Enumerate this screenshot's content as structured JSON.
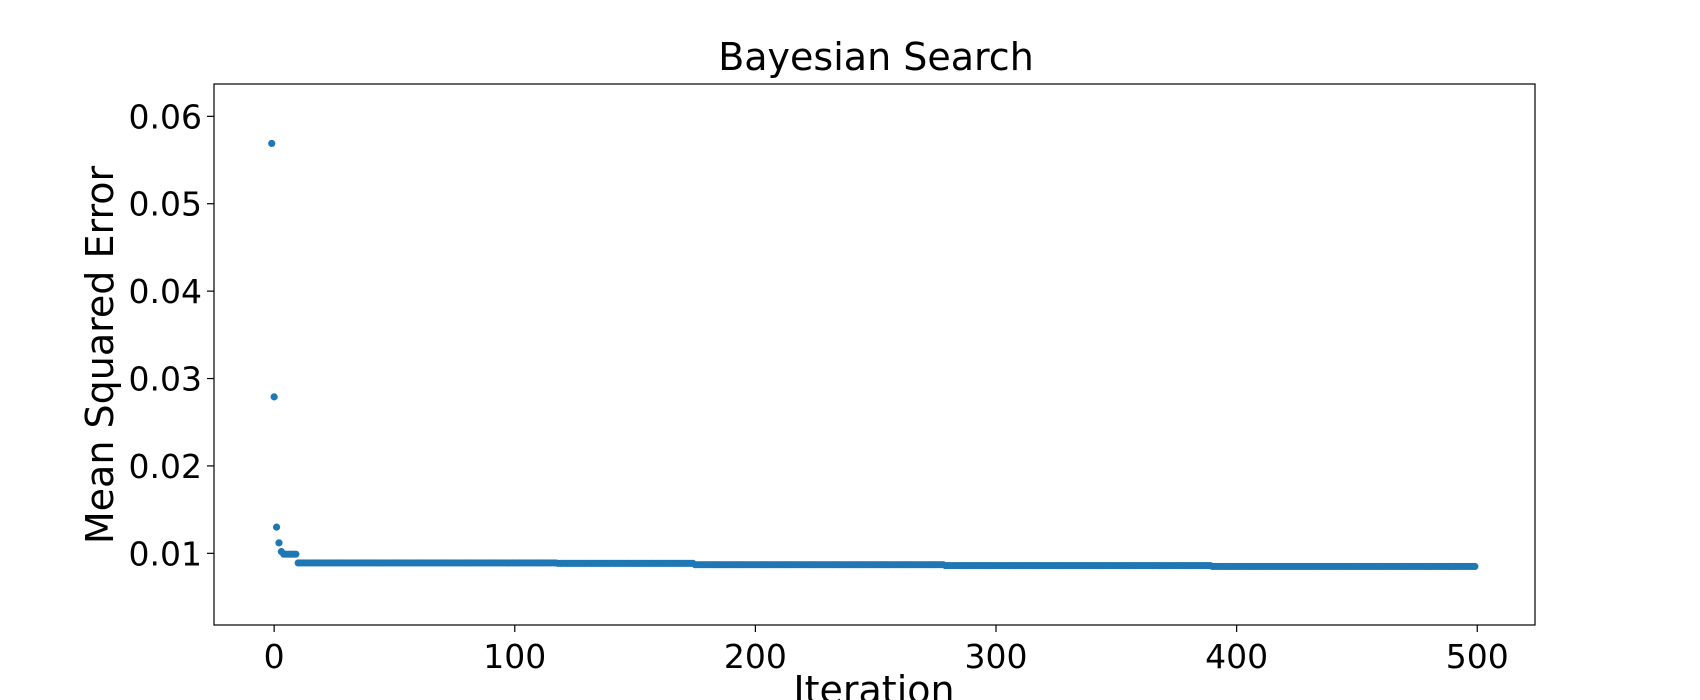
{
  "chart_data": {
    "type": "scatter",
    "title": "Bayesian Search",
    "xlabel": "Iteration",
    "ylabel": "Mean Squared Error",
    "xlim": [
      -25,
      524
    ],
    "ylim": [
      0.0018,
      0.0637
    ],
    "xticks": [
      0,
      100,
      200,
      300,
      400,
      500
    ],
    "yticks": [
      0.01,
      0.02,
      0.03,
      0.04,
      0.05,
      0.06
    ],
    "xtick_labels": [
      "0",
      "100",
      "200",
      "300",
      "400",
      "500"
    ],
    "ytick_labels": [
      "0.01",
      "0.02",
      "0.03",
      "0.04",
      "0.05",
      "0.06"
    ],
    "grid": false,
    "legend": "none",
    "marker_color": "#1f77b4",
    "points": [
      {
        "x": -1,
        "y": 0.0569
      },
      {
        "x": 0,
        "y": 0.0279
      },
      {
        "x": 1,
        "y": 0.013
      },
      {
        "x": 2,
        "y": 0.0112
      },
      {
        "x": 3,
        "y": 0.0102
      },
      {
        "x": 4,
        "y": 0.0099
      },
      {
        "x": 5,
        "y": 0.0099
      },
      {
        "x": 6,
        "y": 0.0099
      },
      {
        "x": 7,
        "y": 0.0099
      },
      {
        "x": 8,
        "y": 0.0099
      },
      {
        "x": 9,
        "y": 0.0099
      }
    ],
    "plateaus": [
      {
        "x_start": 10,
        "x_end": 117,
        "y": 0.0089
      },
      {
        "x_start": 118,
        "x_end": 174,
        "y": 0.00885
      },
      {
        "x_start": 175,
        "x_end": 278,
        "y": 0.0087
      },
      {
        "x_start": 279,
        "x_end": 389,
        "y": 0.0086
      },
      {
        "x_start": 390,
        "x_end": 499,
        "y": 0.0085
      }
    ]
  }
}
